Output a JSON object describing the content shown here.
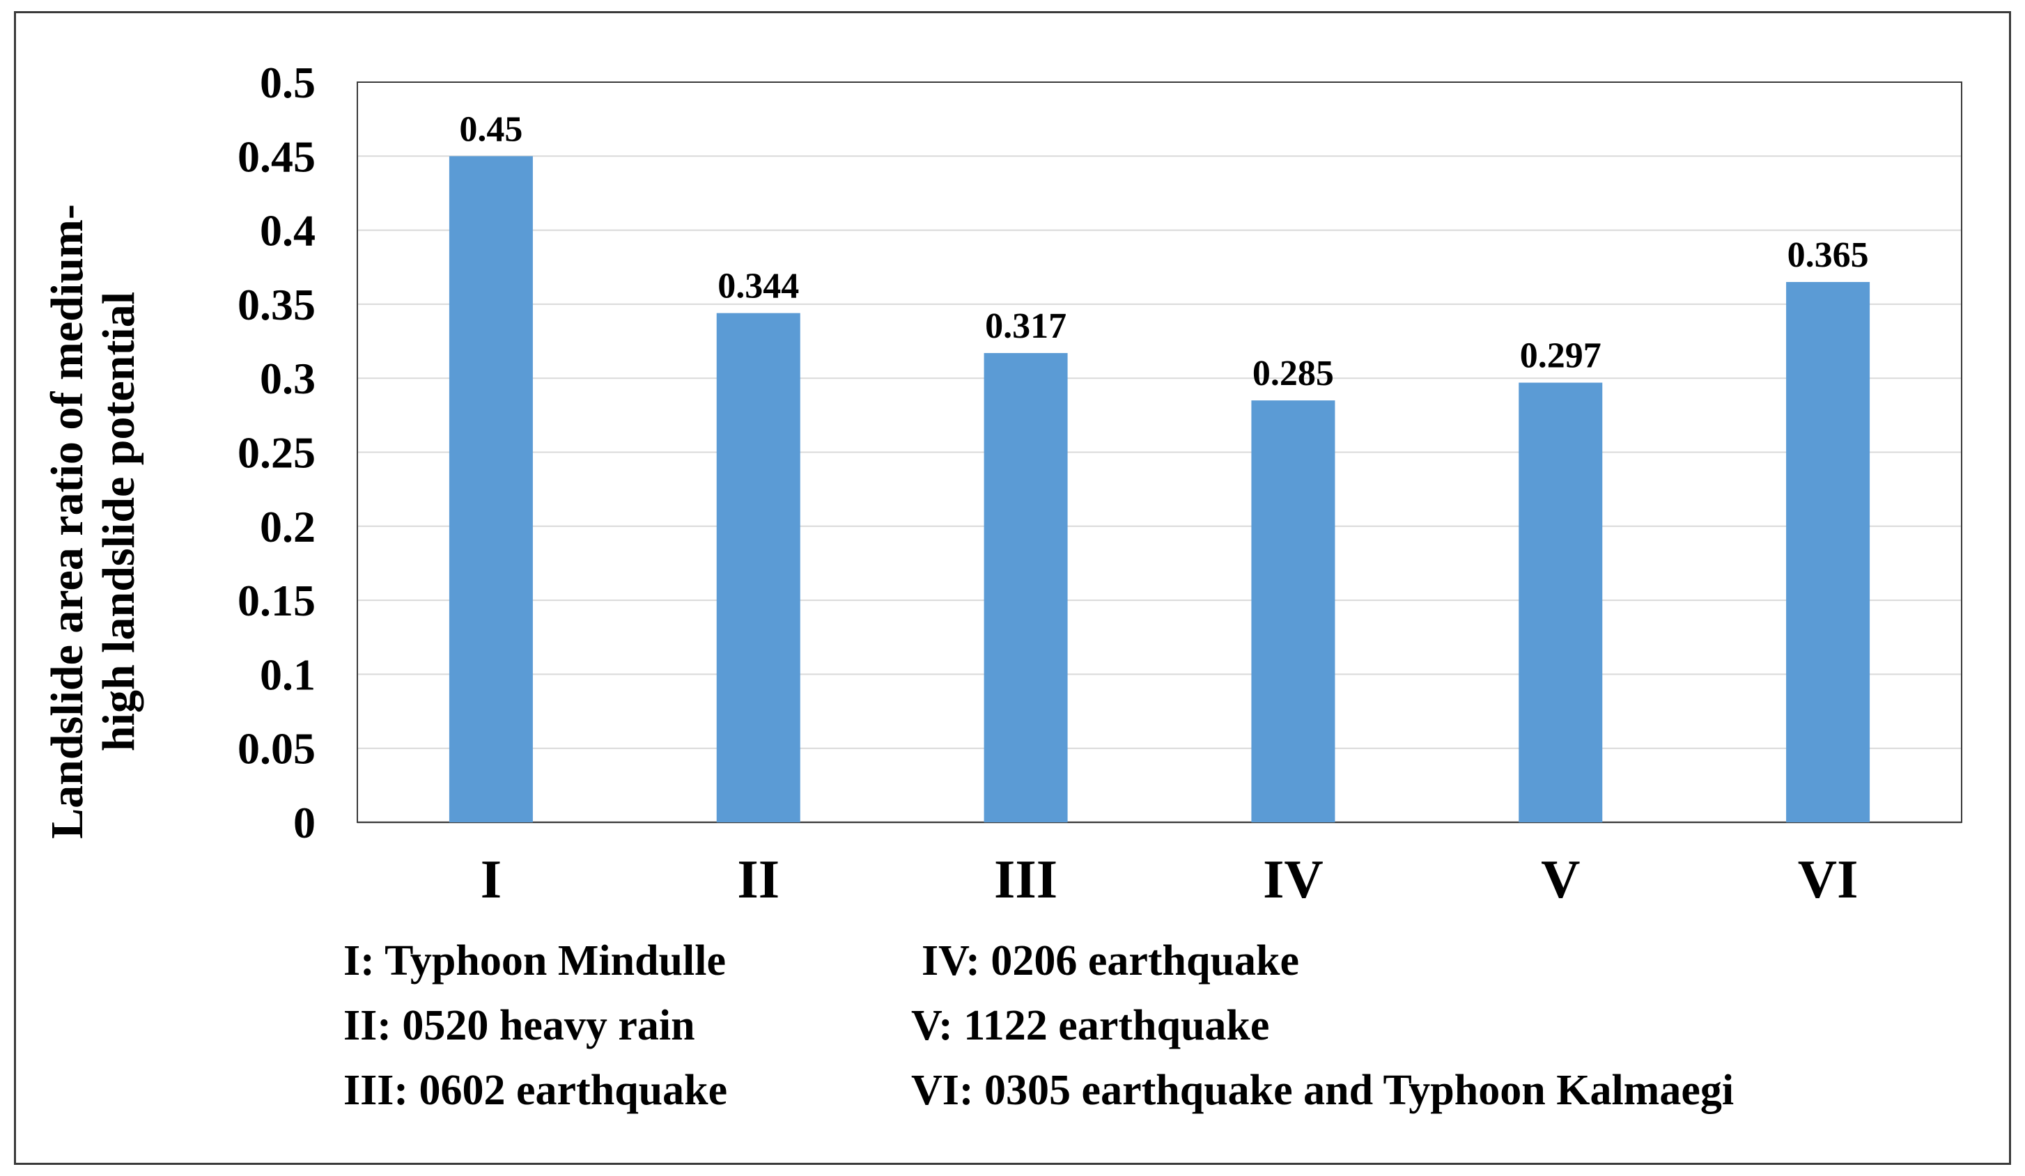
{
  "chart_data": {
    "type": "bar",
    "categories": [
      "I",
      "II",
      "III",
      "IV",
      "V",
      "VI"
    ],
    "values": [
      0.45,
      0.344,
      0.317,
      0.285,
      0.297,
      0.365
    ],
    "value_labels": [
      "0.45",
      "0.344",
      "0.317",
      "0.285",
      "0.297",
      "0.365"
    ],
    "title": "",
    "xlabel": "",
    "ylabel_lines": [
      "Landslide area ratio of medium-",
      "high landslide potential"
    ],
    "ylim": [
      0,
      0.5
    ],
    "yticks": [
      0,
      0.05,
      0.1,
      0.15,
      0.2,
      0.25,
      0.3,
      0.35,
      0.4,
      0.45,
      0.5
    ],
    "ytick_labels": [
      "0",
      "0.05",
      "0.1",
      "0.15",
      "0.2",
      "0.25",
      "0.3",
      "0.35",
      "0.4",
      "0.45",
      "0.5"
    ],
    "grid": true,
    "bar_color": "#5b9bd5",
    "legend": {
      "left": [
        "I: Typhoon Mindulle",
        "II: 0520 heavy rain",
        "III: 0602 earthquake"
      ],
      "right": [
        "IV: 0206 earthquake",
        "V: 1122 earthquake",
        "VI: 0305 earthquake and Typhoon Kalmaegi"
      ]
    }
  }
}
